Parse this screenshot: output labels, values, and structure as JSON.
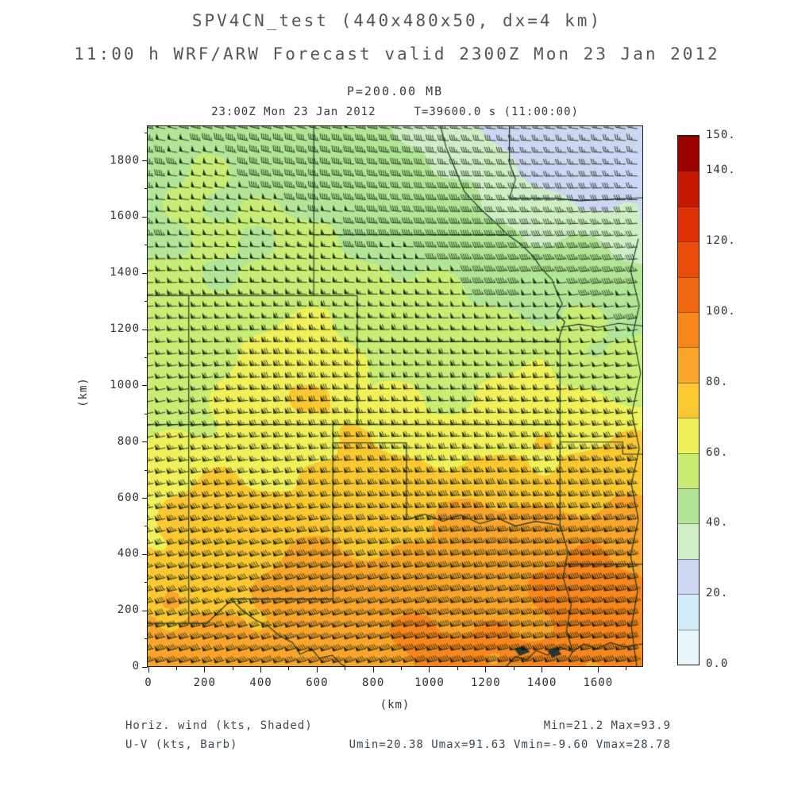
{
  "titles": {
    "line1": "SPV4CN_test (440x480x50, dx=4 km)",
    "line2": "11:00 h WRF/ARW Forecast valid 2300Z Mon 23 Jan 2012",
    "pressure": "P=200.00 MB",
    "valid_time": "23:00Z Mon 23 Jan 2012",
    "model_time": "T=39600.0 s (11:00:00)"
  },
  "axes": {
    "x_label": "(km)",
    "y_label": "(km)",
    "x_ticks": [
      0,
      200,
      400,
      600,
      800,
      1000,
      1200,
      1400,
      1600
    ],
    "y_ticks": [
      0,
      200,
      400,
      600,
      800,
      1000,
      1200,
      1400,
      1600,
      1800
    ],
    "minor_step_km": 100,
    "x_max_km": 1760,
    "y_max_km": 1920
  },
  "footer": {
    "left1": "Horiz. wind (kts, Shaded)",
    "left2": "U-V (kts, Barb)",
    "right1": "Min=21.2 Max=93.9",
    "right2": "Umin=20.38 Umax=91.63 Vmin=-9.60 Vmax=28.78"
  },
  "chart_data": {
    "type": "heatmap",
    "subtype": "shaded wind speed with wind barbs and state/river boundaries",
    "field": "Horizontal wind",
    "units": "kts",
    "pressure_level": "200.00 MB",
    "domain_note": "440x480 grid, dx=4 km",
    "x_range_km": [
      0,
      1760
    ],
    "y_range_km": [
      0,
      1920
    ],
    "grid_x_km": [
      0,
      160,
      320,
      480,
      640,
      800,
      960,
      1120,
      1280,
      1440,
      1600,
      1760
    ],
    "grid_y_km": [
      1920,
      1760,
      1600,
      1440,
      1280,
      1120,
      960,
      800,
      640,
      480,
      320,
      160,
      0
    ],
    "speed_kts": [
      [
        45,
        46,
        46,
        45,
        44,
        42,
        38,
        33,
        28,
        25,
        23,
        22
      ],
      [
        47,
        48,
        47,
        46,
        45,
        44,
        41,
        37,
        32,
        28,
        26,
        25
      ],
      [
        48,
        50,
        50,
        49,
        48,
        47,
        45,
        42,
        38,
        34,
        32,
        31
      ],
      [
        50,
        52,
        52,
        51,
        51,
        50,
        49,
        47,
        45,
        43,
        41,
        40
      ],
      [
        52,
        54,
        56,
        58,
        60,
        54,
        53,
        52,
        51,
        50,
        49,
        48
      ],
      [
        54,
        56,
        58,
        66,
        68,
        58,
        56,
        55,
        55,
        55,
        54,
        53
      ],
      [
        56,
        58,
        61,
        68,
        70,
        62,
        61,
        61,
        61,
        61,
        60,
        59
      ],
      [
        60,
        62,
        66,
        69,
        68,
        66,
        66,
        67,
        68,
        69,
        69,
        68
      ],
      [
        66,
        68,
        70,
        72,
        72,
        73,
        74,
        75,
        76,
        77,
        78,
        77
      ],
      [
        71,
        73,
        75,
        77,
        78,
        79,
        80,
        82,
        84,
        85,
        86,
        85
      ],
      [
        75,
        77,
        79,
        81,
        82,
        84,
        85,
        87,
        89,
        90,
        91,
        90
      ],
      [
        78,
        80,
        83,
        84,
        85,
        87,
        88,
        90,
        91,
        92,
        93,
        92
      ],
      [
        80,
        82,
        84,
        86,
        87,
        88,
        90,
        91,
        93,
        93,
        94,
        93
      ]
    ],
    "wind_model": {
      "direction": "westerly",
      "v_kts_at_bottom": 20,
      "v_kts_at_top": -6
    },
    "barb_spacing_km": 42,
    "stats": {
      "min": 21.2,
      "max": 93.9,
      "umin": 20.38,
      "umax": 91.63,
      "vmin": -9.6,
      "vmax": 28.78
    },
    "colorbar": {
      "levels": [
        0,
        10,
        20,
        30,
        40,
        50,
        60,
        70,
        80,
        90,
        100,
        110,
        120,
        130,
        140,
        150
      ],
      "colors": [
        "#e8f6fb",
        "#d2ebf8",
        "#cdd7f3",
        "#d0eec6",
        "#b2e596",
        "#c8ec74",
        "#f0f05a",
        "#fbc832",
        "#f9a42a",
        "#f7861c",
        "#f26812",
        "#ea4c0a",
        "#e03104",
        "#c51902",
        "#9c0100"
      ],
      "tick_values": [
        0,
        20,
        40,
        60,
        80,
        100,
        120,
        140,
        150
      ],
      "tick_labels": [
        "0.0",
        "20.",
        "40.",
        "60.",
        "80.",
        "100.",
        "120.",
        "140.",
        "150."
      ]
    },
    "boundaries_km": [
      [
        [
          0,
          1317
        ],
        [
          746,
          1317
        ]
      ],
      [
        [
          591,
          1920
        ],
        [
          591,
          1317
        ]
      ],
      [
        [
          591,
          1534
        ],
        [
          1281,
          1534
        ]
      ],
      [
        [
          1042,
          1920
        ],
        [
          1062,
          1844
        ],
        [
          1098,
          1759
        ],
        [
          1126,
          1689
        ],
        [
          1183,
          1627
        ],
        [
          1239,
          1576
        ],
        [
          1281,
          1534
        ]
      ],
      [
        [
          1281,
          1534
        ],
        [
          1332,
          1497
        ],
        [
          1371,
          1458
        ],
        [
          1402,
          1413
        ],
        [
          1439,
          1374
        ],
        [
          1456,
          1329
        ],
        [
          1475,
          1289
        ],
        [
          1456,
          1253
        ],
        [
          1484,
          1224
        ],
        [
          1470,
          1188
        ],
        [
          1461,
          1154
        ]
      ],
      [
        [
          1470,
          1205
        ],
        [
          1535,
          1216
        ],
        [
          1605,
          1205
        ],
        [
          1675,
          1219
        ],
        [
          1760,
          1210
        ]
      ],
      [
        [
          746,
          1154
        ],
        [
          1461,
          1154
        ]
      ],
      [
        [
          746,
          1317
        ],
        [
          746,
          859
        ]
      ],
      [
        [
          146,
          1317
        ],
        [
          146,
          152
        ]
      ],
      [
        [
          0,
          859
        ],
        [
          1467,
          859
        ]
      ],
      [
        [
          1467,
          1154
        ],
        [
          1467,
          501
        ]
      ],
      [
        [
          659,
          794
        ],
        [
          921,
          794
        ]
      ],
      [
        [
          921,
          794
        ],
        [
          921,
          521
        ]
      ],
      [
        [
          659,
          859
        ],
        [
          659,
          239
        ]
      ],
      [
        [
          296,
          239
        ],
        [
          659,
          239
        ]
      ],
      [
        [
          296,
          239
        ],
        [
          338,
          197
        ],
        [
          386,
          163
        ],
        [
          431,
          141
        ],
        [
          470,
          107
        ],
        [
          515,
          84
        ],
        [
          543,
          42
        ],
        [
          583,
          62
        ],
        [
          611,
          28
        ],
        [
          656,
          39
        ],
        [
          690,
          6
        ],
        [
          704,
          0
        ]
      ],
      [
        [
          921,
          521
        ],
        [
          986,
          540
        ],
        [
          1050,
          515
        ],
        [
          1112,
          538
        ],
        [
          1183,
          507
        ],
        [
          1247,
          526
        ],
        [
          1309,
          498
        ],
        [
          1380,
          515
        ],
        [
          1467,
          501
        ]
      ],
      [
        [
          1467,
          501
        ],
        [
          1495,
          408
        ],
        [
          1478,
          315
        ],
        [
          1507,
          220
        ],
        [
          1490,
          127
        ],
        [
          1512,
          51
        ],
        [
          1501,
          34
        ]
      ],
      [
        [
          1467,
          797
        ],
        [
          1690,
          797
        ],
        [
          1690,
          754
        ],
        [
          1760,
          754
        ]
      ],
      [
        [
          1484,
          363
        ],
        [
          1760,
          363
        ]
      ],
      [
        [
          1746,
          1520
        ],
        [
          1718,
          1408
        ],
        [
          1749,
          1281
        ],
        [
          1726,
          1182
        ],
        [
          1754,
          1042
        ],
        [
          1723,
          901
        ],
        [
          1749,
          774
        ],
        [
          1721,
          647
        ],
        [
          1746,
          521
        ],
        [
          1718,
          394
        ],
        [
          1743,
          267
        ],
        [
          1721,
          141
        ],
        [
          1740,
          0
        ]
      ],
      [
        [
          1287,
          1920
        ],
        [
          1287,
          1788
        ],
        [
          1309,
          1731
        ],
        [
          1287,
          1664
        ]
      ],
      [
        [
          1287,
          1664
        ],
        [
          1450,
          1664
        ],
        [
          1535,
          1655
        ],
        [
          1760,
          1666
        ]
      ],
      [
        [
          1276,
          0
        ],
        [
          1309,
          34
        ],
        [
          1349,
          23
        ],
        [
          1383,
          56
        ],
        [
          1422,
          39
        ],
        [
          1467,
          68
        ],
        [
          1512,
          51
        ],
        [
          1552,
          79
        ],
        [
          1597,
          62
        ],
        [
          1647,
          84
        ],
        [
          1698,
          68
        ],
        [
          1760,
          79
        ]
      ],
      [
        [
          0,
          152
        ],
        [
          210,
          152
        ],
        [
          296,
          234
        ]
      ]
    ],
    "water_km": [
      [
        [
          1304,
          62
        ],
        [
          1338,
          73
        ],
        [
          1360,
          51
        ],
        [
          1323,
          37
        ]
      ],
      [
        [
          1422,
          56
        ],
        [
          1456,
          68
        ],
        [
          1472,
          42
        ],
        [
          1439,
          31
        ]
      ]
    ]
  }
}
